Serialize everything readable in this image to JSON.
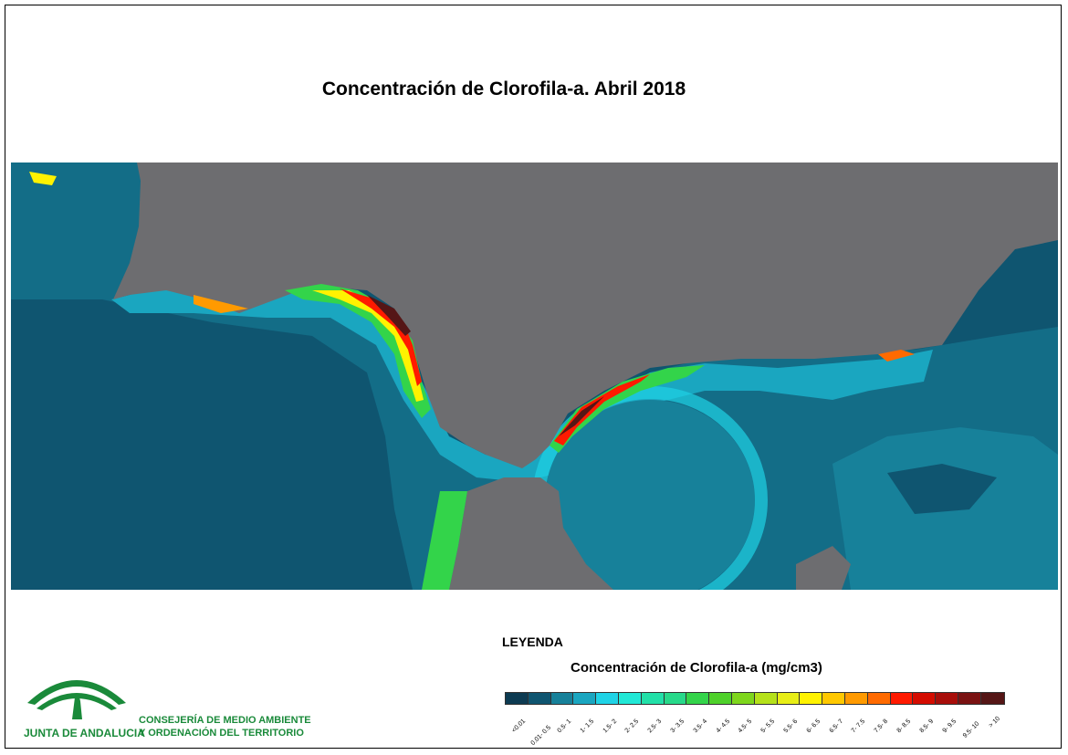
{
  "title": "Concentración de Clorofila-a. Abril 2018",
  "legend": {
    "heading": "LEYENDA",
    "subtitle": "Concentración de Clorofila-a (mg/cm3)",
    "classes": [
      {
        "label": "<0.01",
        "color": "#0d3b52"
      },
      {
        "label": "0.01- 0.5",
        "color": "#0f5570"
      },
      {
        "label": "0.5- 1",
        "color": "#17819a"
      },
      {
        "label": "1- 1.5",
        "color": "#1aa6c0"
      },
      {
        "label": "1.5- 2",
        "color": "#1fd3e6"
      },
      {
        "label": "2- 2.5",
        "color": "#21e8d6"
      },
      {
        "label": "2.5- 3",
        "color": "#22e0a8"
      },
      {
        "label": "3- 3.5",
        "color": "#27d98a"
      },
      {
        "label": "3.5- 4",
        "color": "#33d44a"
      },
      {
        "label": "4- 4.5",
        "color": "#4ed12a"
      },
      {
        "label": "4.5- 5",
        "color": "#7ed61c"
      },
      {
        "label": "5- 5.5",
        "color": "#b5e11a"
      },
      {
        "label": "5.5- 6",
        "color": "#e8ee16"
      },
      {
        "label": "6- 6.5",
        "color": "#fff200"
      },
      {
        "label": "6.5- 7",
        "color": "#ffc800"
      },
      {
        "label": "7- 7.5",
        "color": "#ff9a00"
      },
      {
        "label": "7.5- 8",
        "color": "#ff6a00"
      },
      {
        "label": "8- 8.5",
        "color": "#ff1a00"
      },
      {
        "label": "8.5- 9",
        "color": "#d40c00"
      },
      {
        "label": "9- 9.5",
        "color": "#a80e0a"
      },
      {
        "label": "9.5- 10",
        "color": "#7a1212"
      },
      {
        "label": "> 10",
        "color": "#551616"
      }
    ]
  },
  "logo": {
    "name": "JUNTA DE ANDALUCIA",
    "color": "#1a8a3a"
  },
  "ministry": {
    "line1": "CONSEJERÍA DE MEDIO AMBIENTE",
    "line2": "Y ORDENACIÓN DEL TERRITORIO"
  },
  "colors": {
    "land": "#6d6d70",
    "deep_water": "#0f5570",
    "mid_water": "#17819a",
    "shelf_water": "#1aa6c0"
  }
}
